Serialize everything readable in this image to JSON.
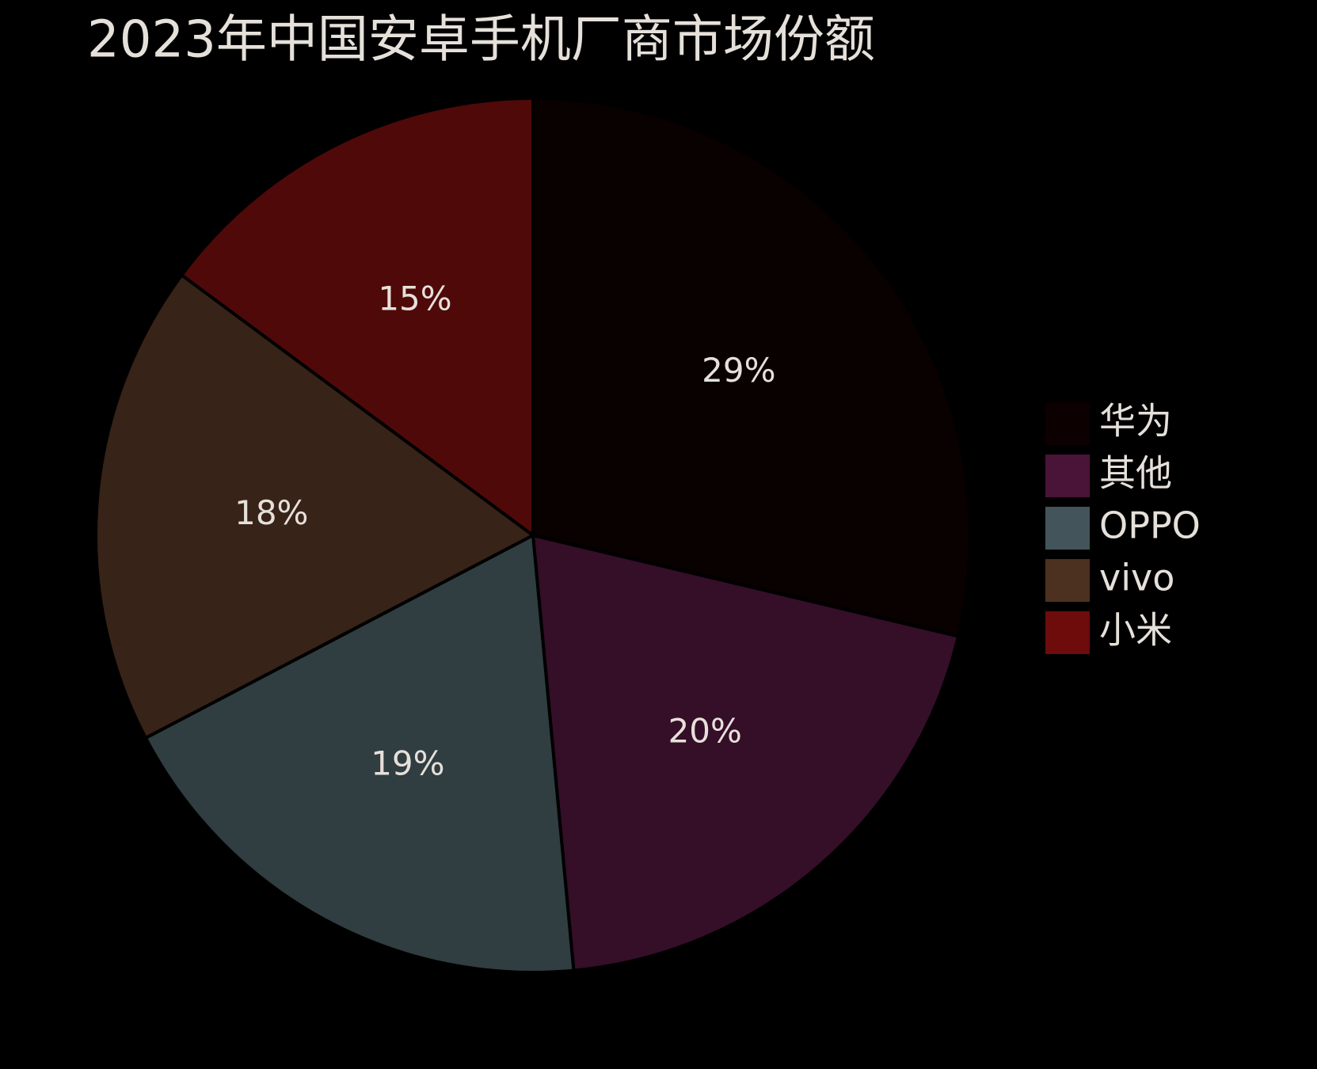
{
  "chart_data": {
    "type": "pie",
    "title": "2023年中国安卓手机厂商市场份额",
    "categories": [
      "华为",
      "其他",
      "OPPO",
      "vivo",
      "小米"
    ],
    "values": [
      29,
      20,
      19,
      18,
      15
    ],
    "value_labels": [
      "29%",
      "20%",
      "19%",
      "18%",
      "15%"
    ],
    "colors": [
      "#0d0000",
      "#4a1438",
      "#43545a",
      "#4c3020",
      "#6e0c0c"
    ],
    "legend": "right"
  }
}
